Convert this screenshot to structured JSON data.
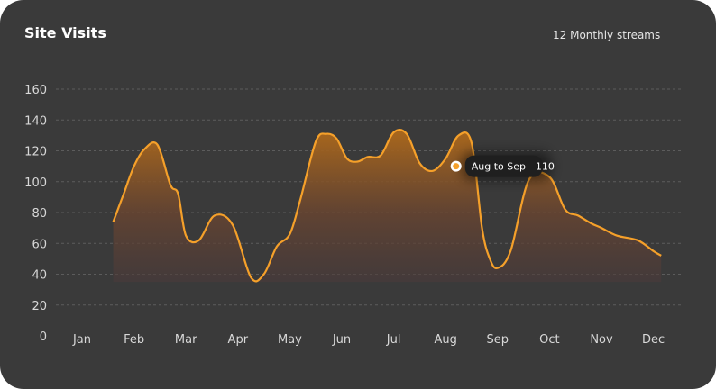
{
  "card": {
    "title": "Site Visits",
    "subtitle": "12 Monthly streams"
  },
  "colors": {
    "background": "#3a3a3a",
    "line": "#f5a02a",
    "grid": "#5c5c5c",
    "tooltip_bg": "#1f1f1f"
  },
  "chart_data": {
    "type": "area",
    "title": "Site Visits",
    "xlabel": "",
    "ylabel": "",
    "ylim": [
      0,
      160
    ],
    "yticks": [
      0,
      20,
      40,
      60,
      80,
      100,
      120,
      140,
      160
    ],
    "categories": [
      "Jan",
      "Feb",
      "Mar",
      "Apr",
      "May",
      "Jun",
      "Jul",
      "Aug",
      "Sep",
      "Oct",
      "Nov",
      "Dec"
    ],
    "grid": true,
    "series": [
      {
        "x": [
          1.6,
          1.8,
          2.0,
          2.2,
          2.45,
          2.7,
          2.85,
          3.0,
          3.25,
          3.55,
          3.9,
          4.25,
          4.5,
          4.75,
          5.0,
          5.2,
          5.5,
          5.7,
          5.9,
          6.1,
          6.3,
          6.5,
          6.75,
          7.0,
          7.25,
          7.5,
          7.75,
          8.0,
          8.25,
          8.5,
          8.7,
          8.85,
          9.0,
          9.25,
          9.6,
          10.0,
          10.3,
          10.55,
          10.8,
          11.0,
          11.3,
          11.7,
          12.0,
          12.15
        ],
        "y": [
          74,
          92,
          110,
          121,
          124,
          98,
          92,
          65,
          62,
          78,
          72,
          38,
          40,
          58,
          66,
          88,
          126,
          131,
          128,
          115,
          113,
          116,
          117,
          132,
          131,
          112,
          107,
          115,
          130,
          125,
          70,
          50,
          44,
          55,
          101,
          103,
          82,
          78,
          73,
          70,
          65,
          62,
          55,
          52
        ]
      }
    ],
    "annotation": {
      "label": "Aug to Sep - 110",
      "x": 8.2,
      "y": 110
    }
  }
}
